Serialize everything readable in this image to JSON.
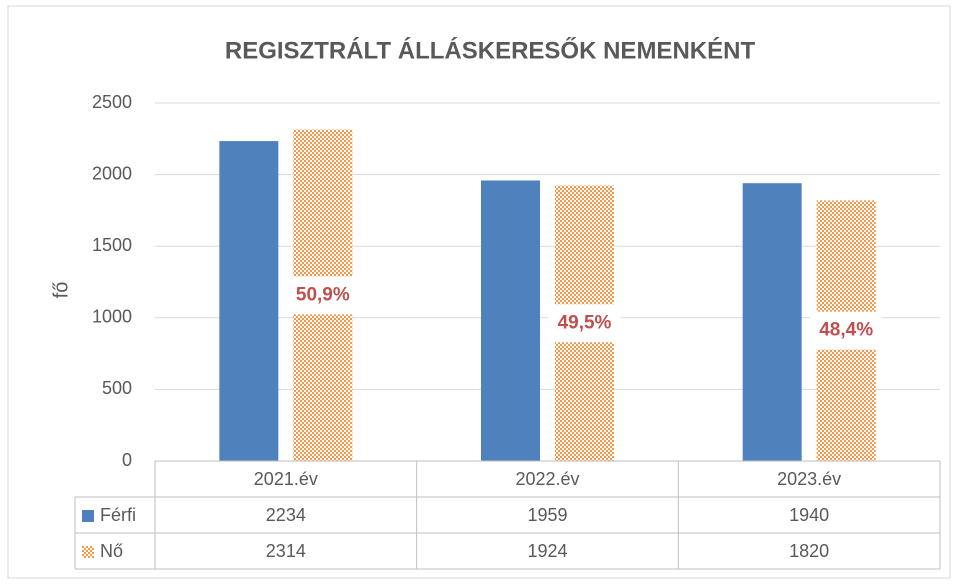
{
  "chart_data": {
    "type": "bar",
    "title": "REGISZTRÁLT ÁLLÁSKERESŐK NEMENKÉNT",
    "y_label": "fő",
    "categories": [
      "2021.év",
      "2022.év",
      "2023.év"
    ],
    "series": [
      {
        "name": "Férfi",
        "color": "#4f81bd",
        "values": [
          2234,
          1959,
          1940
        ]
      },
      {
        "name": "Nő",
        "color": "#f79646",
        "values": [
          2314,
          1924,
          1820
        ]
      }
    ],
    "annotations": [
      "50,9%",
      "49,5%",
      "48,4%"
    ],
    "ylim": [
      0,
      2500
    ],
    "yticks": [
      0,
      500,
      1000,
      1500,
      2000,
      2500
    ],
    "grid": true,
    "data_table": true
  }
}
